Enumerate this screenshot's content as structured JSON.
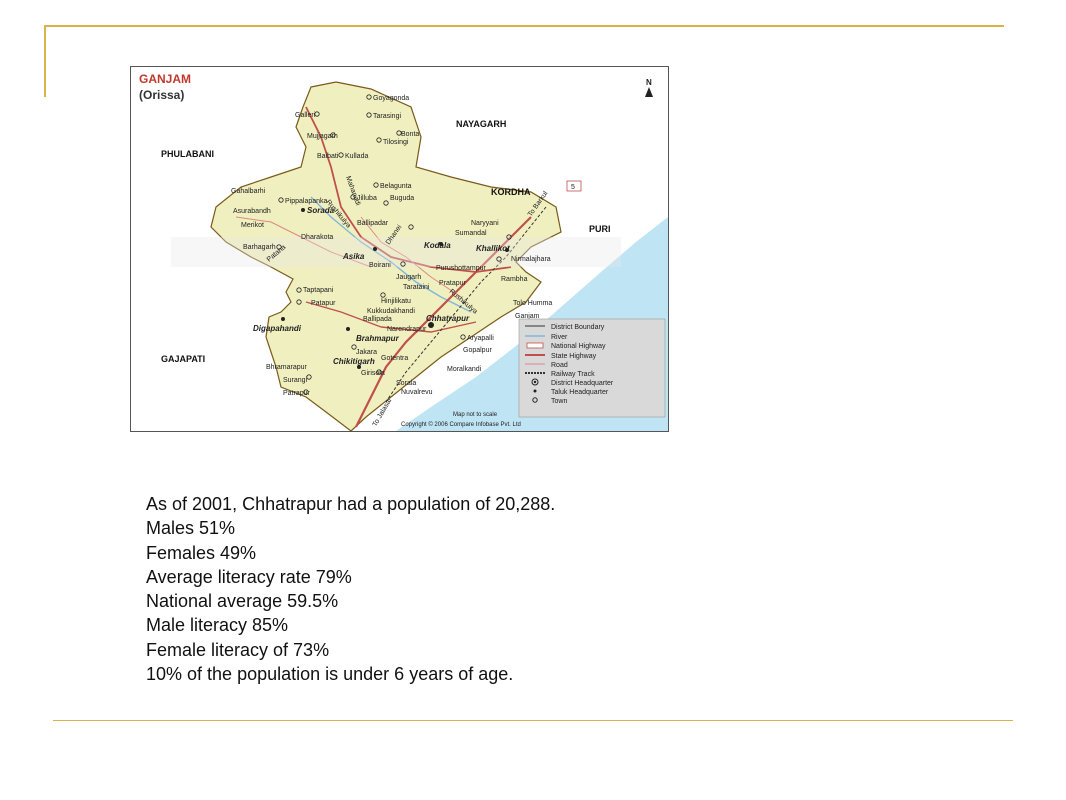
{
  "colors": {
    "accent": "#d9b24a",
    "land": "#f0efbf",
    "sea": "#bfe4f3",
    "district_boundary": "#7a5a1a",
    "highway": "#c0504d"
  },
  "map": {
    "title": "GANJAM",
    "subtitle": "(Orissa)",
    "north": "N",
    "regions": {
      "phulabani": "PHULABANI",
      "nayagarh": "NAYAGARH",
      "kordha": "KORDHA",
      "puri": "PURI",
      "gajapati": "GAJAPATI"
    },
    "highway_marker": "5",
    "towns": {
      "goyagonda": "Goyagonda",
      "galleri": "Galleri",
      "tarasingi": "Tarasingi",
      "bonta": "Bonta",
      "mujjagarh": "Mujjagarh",
      "tilosingi": "Tilosingi",
      "baibati": "Baibati",
      "kullada": "Kullada",
      "belagunta": "Belagunta",
      "gahalbarhi": "Gahalbarhi",
      "pippalapanka": "Pippalapanka",
      "asurabandh": "Asurabandh",
      "soroda": "Sorada",
      "jilluba": "Jilluba",
      "buguda": "Buguda",
      "merikot": "Merikot",
      "ballipadar": "Ballipadar",
      "naryyani": "Naryyani",
      "sumandal": "Sumandal",
      "barhagarh": "Barhagarh",
      "dharakota": "Dharakota",
      "kodala": "Kodala",
      "khallikot": "Khallikot",
      "nirmalajhara": "Nirmalajhara",
      "asika": "Asika",
      "boirani": "Boirani",
      "purushottampur": "Purushottampur",
      "jaugarh": "Jaugarh",
      "rambha": "Rambha",
      "taptapani": "Taptapani",
      "pratapur": "Pratapur",
      "tarataini": "Tarataini",
      "patapur": "Patapur",
      "hinjilikatu": "Hinjilikatu",
      "tolo_humma": "Tolo Humma",
      "kukkudakhandi": "Kukkudakhandi",
      "ganjam": "Ganjam",
      "ballipada": "Ballipada",
      "digapahandi": "Digapahandi",
      "chhatrapur": "Chhatrapur",
      "narendrapur": "Narendrapur",
      "brahmapur": "Brahmapur",
      "aryapalli": "Aryapalli",
      "gopalpur": "Gopalpur",
      "jakara": "Jakara",
      "bhramarapur": "Bhramarapur",
      "gotentra": "Gotentra",
      "chikitigarh": "Chikitigarh",
      "moralkandi": "Moralkandi",
      "girisola": "Girisola",
      "surangi": "Surangi",
      "sorala": "Sorala",
      "patrapur": "Patrapur",
      "nuvalrevu": "Nuvalrevu"
    },
    "road_labels": {
      "to_barkul": "To Barkul",
      "to_jalasar": "To Jalasar",
      "mahanadi": "Mahanadi",
      "rushikulya": "Rushikulya",
      "rushikulya2": "Rushikulya",
      "dhanei": "Dhanei",
      "patana": "Patana"
    },
    "legend": [
      {
        "symbol": "line",
        "color": "#555555",
        "label": "District Boundary"
      },
      {
        "symbol": "river",
        "color": "#7fb7d8",
        "label": "River"
      },
      {
        "symbol": "nh",
        "color": "#c0504d",
        "label": "National Highway"
      },
      {
        "symbol": "sh",
        "color": "#c0504d",
        "label": "State Highway"
      },
      {
        "symbol": "road",
        "color": "#d88",
        "label": "Road"
      },
      {
        "symbol": "rail",
        "color": "#333333",
        "label": "Railway Track"
      },
      {
        "symbol": "dhq",
        "color": "#222222",
        "label": "District Headquarter"
      },
      {
        "symbol": "thq",
        "color": "#222222",
        "label": "Taluk Headquarter"
      },
      {
        "symbol": "town",
        "color": "#222222",
        "label": "Town"
      }
    ],
    "scale_note": "Map not to scale",
    "copyright": "Copyright © 2006 Compare Infobase Pvt. Ltd"
  },
  "stats": [
    "As of 2001, Chhatrapur had a population of 20,288.",
    "Males 51%",
    "Females 49%",
    "Average literacy rate 79%",
    "National average 59.5%",
    "Male literacy 85%",
    "Female literacy of 73%",
    "10% of the population is under 6 years of age."
  ]
}
